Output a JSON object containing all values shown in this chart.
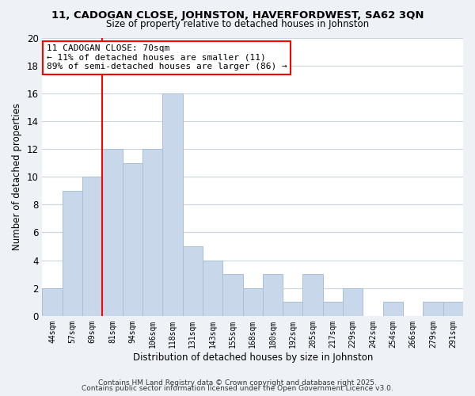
{
  "title": "11, CADOGAN CLOSE, JOHNSTON, HAVERFORDWEST, SA62 3QN",
  "subtitle": "Size of property relative to detached houses in Johnston",
  "xlabel": "Distribution of detached houses by size in Johnston",
  "ylabel": "Number of detached properties",
  "bar_color": "#c8d8ea",
  "bar_edgecolor": "#a8c0d6",
  "vline_color": "red",
  "vline_index": 2,
  "annotation_title": "11 CADOGAN CLOSE: 70sqm",
  "annotation_line1": "← 11% of detached houses are smaller (11)",
  "annotation_line2": "89% of semi-detached houses are larger (86) →",
  "bins": [
    "44sqm",
    "57sqm",
    "69sqm",
    "81sqm",
    "94sqm",
    "106sqm",
    "118sqm",
    "131sqm",
    "143sqm",
    "155sqm",
    "168sqm",
    "180sqm",
    "192sqm",
    "205sqm",
    "217sqm",
    "229sqm",
    "242sqm",
    "254sqm",
    "266sqm",
    "279sqm",
    "291sqm"
  ],
  "values": [
    2,
    9,
    10,
    12,
    11,
    12,
    16,
    5,
    4,
    3,
    2,
    3,
    1,
    3,
    1,
    2,
    0,
    1,
    0,
    1,
    1
  ],
  "ylim": [
    0,
    20
  ],
  "yticks": [
    0,
    2,
    4,
    6,
    8,
    10,
    12,
    14,
    16,
    18,
    20
  ],
  "footer1": "Contains HM Land Registry data © Crown copyright and database right 2025.",
  "footer2": "Contains public sector information licensed under the Open Government Licence v3.0.",
  "bg_color": "#eef2f6",
  "plot_bg_color": "#ffffff",
  "grid_color": "#c8d4df"
}
